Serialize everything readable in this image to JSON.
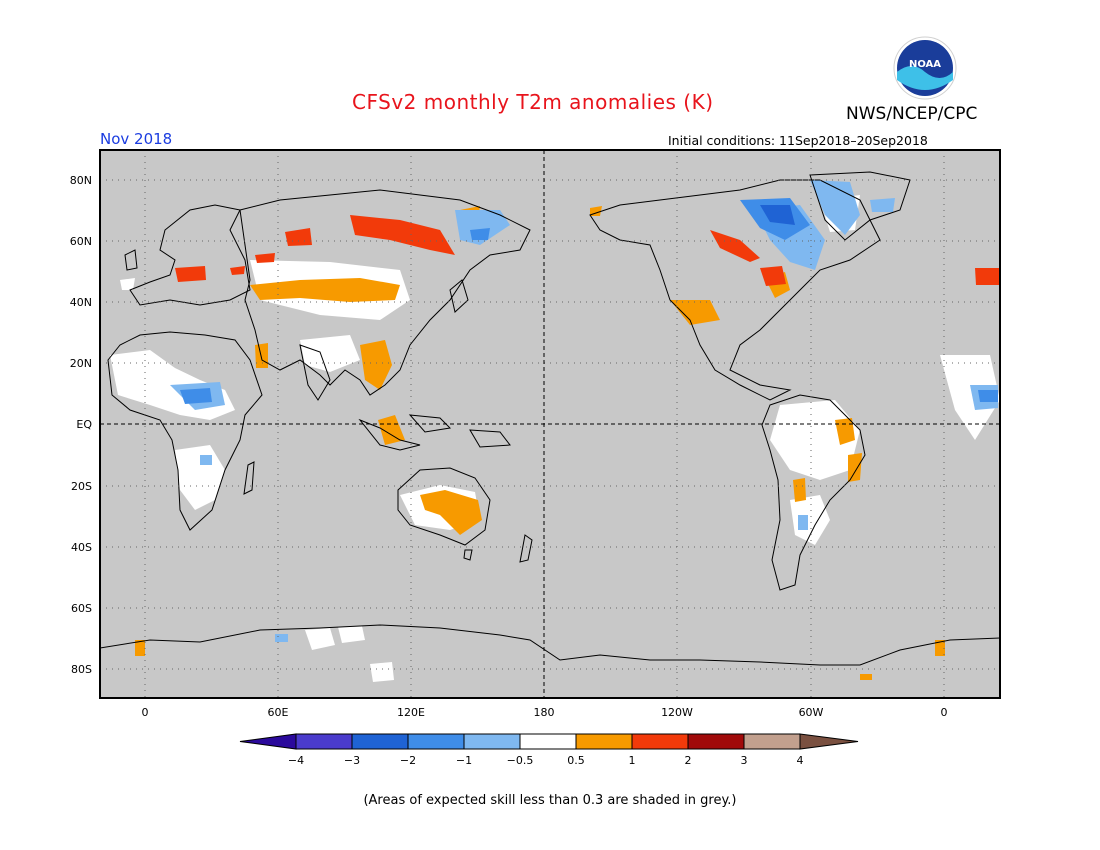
{
  "header": {
    "title": "CFSv2 monthly T2m anomalies (K)",
    "org": "NWS/NCEP/CPC",
    "logo_text": "NOAA",
    "period": "Nov 2018",
    "initial_conditions": "Initial conditions: 11Sep2018–20Sep2018"
  },
  "map": {
    "lat_labels": [
      "80N",
      "60N",
      "40N",
      "20N",
      "EQ",
      "20S",
      "40S",
      "60S",
      "80S"
    ],
    "lon_labels": [
      "0",
      "60E",
      "120E",
      "180",
      "120W",
      "60W",
      "0"
    ],
    "background_color": "#c8c8c8"
  },
  "colorbar": {
    "ticks": [
      "−4",
      "−3",
      "−2",
      "−1",
      "−0.5",
      "0.5",
      "1",
      "2",
      "3",
      "4"
    ],
    "colors": [
      "#2b0a9c",
      "#4a3bcc",
      "#1f63d4",
      "#3f8de8",
      "#7fb8f0",
      "#ffffff",
      "#f79a00",
      "#f23a0a",
      "#a10a0a",
      "#c2a08e",
      "#7a5040"
    ]
  },
  "footnote": "(Areas of expected skill less than 0.3 are shaded in grey.)"
}
